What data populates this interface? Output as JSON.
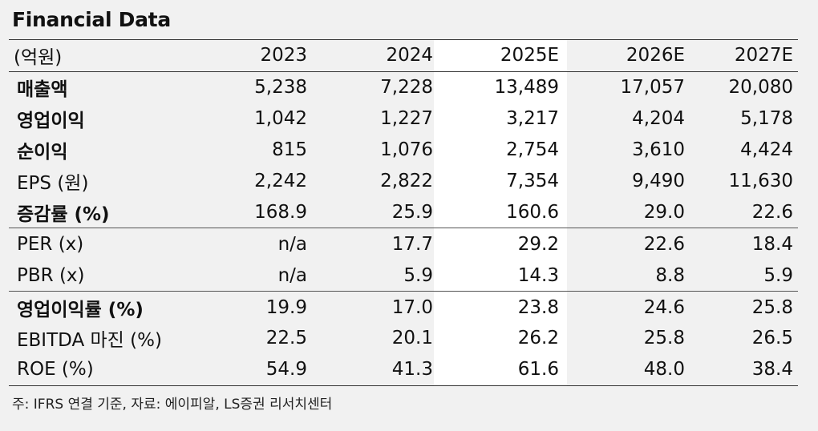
{
  "title": "Financial Data",
  "header": [
    "(억원)",
    "2023",
    "2024",
    "2025E",
    "2026E",
    "2027E"
  ],
  "rows": [
    {
      "label": "매출액",
      "values": [
        "5,238",
        "7,228",
        "13,489",
        "17,057",
        "20,080"
      ]
    },
    {
      "label": "영업이익",
      "values": [
        "1,042",
        "1,227",
        "3,217",
        "4,204",
        "5,178"
      ]
    },
    {
      "label": "순이익",
      "values": [
        "815",
        "1,076",
        "2,754",
        "3,610",
        "4,424"
      ]
    },
    {
      "label": "EPS (원)",
      "values": [
        "2,242",
        "2,822",
        "7,354",
        "9,490",
        "11,630"
      ]
    },
    {
      "label": "증감률 (%)",
      "values": [
        "168.9",
        "25.9",
        "160.6",
        "29.0",
        "22.6"
      ]
    },
    {
      "label": "PER (x)",
      "values": [
        "n/a",
        "17.7",
        "29.2",
        "22.6",
        "18.4"
      ]
    },
    {
      "label": "PBR (x)",
      "values": [
        "n/a",
        "5.9",
        "14.3",
        "8.8",
        "5.9"
      ]
    },
    {
      "label": "영업이익률 (%)",
      "values": [
        "19.9",
        "17.0",
        "23.8",
        "24.6",
        "25.8"
      ]
    },
    {
      "label": "EBITDA 마진 (%)",
      "values": [
        "22.5",
        "20.1",
        "26.2",
        "25.8",
        "26.5"
      ]
    },
    {
      "label": "ROE (%)",
      "values": [
        "54.9",
        "41.3",
        "61.6",
        "48.0",
        "38.4"
      ]
    }
  ],
  "footnote": "주: IFRS 연결 기준, 자료: 에이피알, LS증권 리서치센터"
}
